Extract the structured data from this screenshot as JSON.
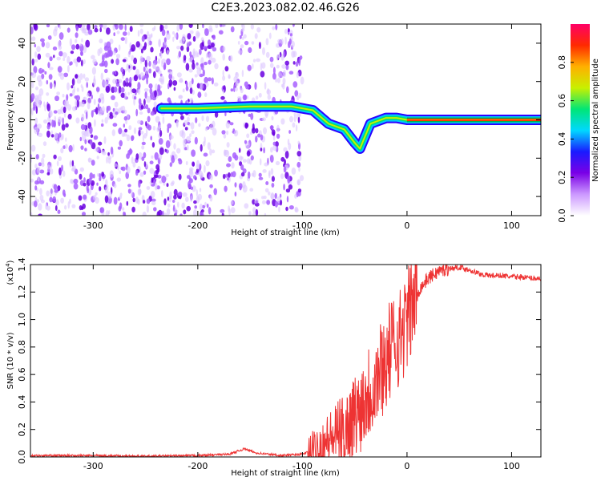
{
  "title": "C2E3.2023.082.02.46.G26",
  "chart_data": [
    {
      "type": "heatmap",
      "xlabel": "Height of straight line (km)",
      "ylabel": "Frequency (Hz)",
      "xlim": [
        -360,
        128
      ],
      "ylim": [
        -50,
        50
      ],
      "xticks": [
        -300,
        -200,
        -100,
        0,
        100
      ],
      "yticks": [
        -40,
        -20,
        0,
        20,
        40
      ],
      "colorbar": {
        "label": "Normalized spectral amplitude",
        "range": [
          0,
          1
        ],
        "ticks": [
          "0.0",
          "0.2",
          "0.4",
          "0.6",
          "0.8"
        ],
        "colormap": [
          "#ffffff",
          "#cc99ff",
          "#7a00e6",
          "#1a1aff",
          "#00d8ff",
          "#00e676",
          "#c8f000",
          "#ffb000",
          "#ff2a00",
          "#ff0066"
        ]
      },
      "ridge": [
        {
          "x": -235,
          "y": 6
        },
        {
          "x": -200,
          "y": 6
        },
        {
          "x": -150,
          "y": 7
        },
        {
          "x": -110,
          "y": 7
        },
        {
          "x": -90,
          "y": 5
        },
        {
          "x": -75,
          "y": -2
        },
        {
          "x": -60,
          "y": -5
        },
        {
          "x": -50,
          "y": -12
        },
        {
          "x": -45,
          "y": -15
        },
        {
          "x": -35,
          "y": -2
        },
        {
          "x": -20,
          "y": 1
        },
        {
          "x": -10,
          "y": 1
        },
        {
          "x": 0,
          "y": 0
        },
        {
          "x": 128,
          "y": 0
        }
      ]
    },
    {
      "type": "line",
      "xlabel": "Height of straight line (km)",
      "ylabel": "SNR (10 * v/v)",
      "yscale_label": "(x10",
      "yscale_exp": "4",
      "xlim": [
        -360,
        128
      ],
      "ylim": [
        0,
        1.4
      ],
      "xticks": [
        -300,
        -200,
        -100,
        0,
        100
      ],
      "yticks": [
        "0.0",
        "0.2",
        "0.4",
        "0.6",
        "0.8",
        "1.0",
        "1.2",
        "1.4"
      ],
      "color": "#ee3333",
      "series": [
        {
          "x": [
            -360,
            -300,
            -250,
            -200,
            -170,
            -155,
            -145,
            -120,
            -100,
            -90,
            -80,
            -70,
            -60,
            -50,
            -45,
            -40,
            -35,
            -30,
            -25,
            -20,
            -15,
            -10,
            -5,
            0,
            5,
            10,
            20,
            30,
            40,
            50,
            60,
            70,
            80,
            90,
            100,
            110,
            120,
            128
          ],
          "y": [
            0.01,
            0.01,
            0.005,
            0.01,
            0.02,
            0.06,
            0.03,
            0.01,
            0.02,
            0.05,
            0.1,
            0.15,
            0.2,
            0.3,
            0.35,
            0.45,
            0.5,
            0.55,
            0.65,
            0.7,
            0.8,
            0.85,
            0.9,
            1.0,
            1.1,
            1.2,
            1.3,
            1.35,
            1.37,
            1.38,
            1.36,
            1.33,
            1.32,
            1.32,
            1.31,
            1.31,
            1.3,
            1.3
          ]
        }
      ]
    }
  ]
}
